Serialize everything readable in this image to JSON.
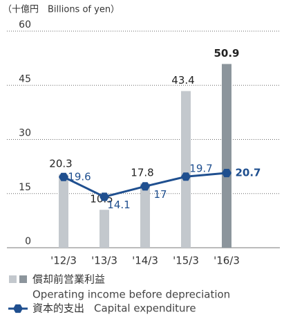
{
  "chart_data": {
    "type": "bar-line",
    "unit": "（十億円　Billions of yen）",
    "categories": [
      "'12/3",
      "'13/3",
      "'14/3",
      "'15/3",
      "'16/3"
    ],
    "series": [
      {
        "name": "償却前営業利益",
        "name_en": "Operating income before depreciation",
        "type": "bar",
        "colors": [
          "#c3c8cd",
          "#c3c8cd",
          "#c3c8cd",
          "#c3c8cd",
          "#8c959c"
        ],
        "values": [
          20.3,
          10.5,
          17.8,
          43.4,
          50.9
        ]
      },
      {
        "name": "資本的支出",
        "name_en": "Capital expenditure",
        "type": "line",
        "color": "#1f4f8f",
        "values": [
          19.6,
          14.1,
          17.0,
          19.7,
          20.7
        ]
      }
    ],
    "ylim": [
      0,
      60
    ],
    "yticks": [
      0,
      15,
      30,
      45,
      60
    ],
    "grid": true
  }
}
